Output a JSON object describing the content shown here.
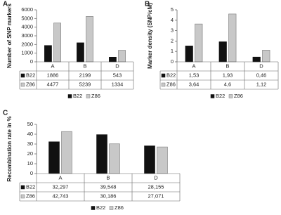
{
  "chart_data": [
    {
      "type": "bar",
      "panel": "A",
      "ylabel": "Number of SNP markers",
      "categories": [
        "A",
        "B",
        "D"
      ],
      "series": [
        {
          "name": "B22",
          "color": "#111111",
          "values": [
            1886,
            2199,
            543
          ]
        },
        {
          "name": "Z86",
          "color": "#c8c8c8",
          "values": [
            4477,
            5239,
            1334
          ]
        }
      ],
      "ylim": [
        0,
        6000
      ],
      "yticks": [
        0,
        1000,
        2000,
        3000,
        4000,
        5000,
        6000
      ]
    },
    {
      "type": "bar",
      "panel": "B",
      "ylabel": "Marker density (SNP/cM)",
      "categories": [
        "A",
        "B",
        "D"
      ],
      "series": [
        {
          "name": "B22",
          "color": "#111111",
          "values": [
            1.53,
            1.93,
            0.46
          ],
          "value_labels": [
            "1,53",
            "1,93",
            "0,46"
          ]
        },
        {
          "name": "Z86",
          "color": "#c8c8c8",
          "values": [
            3.64,
            4.6,
            1.12
          ],
          "value_labels": [
            "3,64",
            "4,6",
            "1,12"
          ]
        }
      ],
      "ylim": [
        0,
        5
      ],
      "yticks": [
        0,
        1,
        2,
        3,
        4,
        5
      ]
    },
    {
      "type": "bar",
      "panel": "C",
      "ylabel": "Recombination rate in %",
      "categories": [
        "A",
        "B",
        "D"
      ],
      "series": [
        {
          "name": "B22",
          "color": "#111111",
          "values": [
            32.297,
            39.548,
            28.155
          ],
          "value_labels": [
            "32,297",
            "39,548",
            "28,155"
          ]
        },
        {
          "name": "Z86",
          "color": "#c8c8c8",
          "values": [
            42.743,
            30.186,
            27.071
          ],
          "value_labels": [
            "42,743",
            "30,186",
            "27,071"
          ]
        }
      ],
      "ylim": [
        0,
        50
      ],
      "yticks": [
        0,
        10,
        20,
        30,
        40,
        50
      ]
    }
  ]
}
